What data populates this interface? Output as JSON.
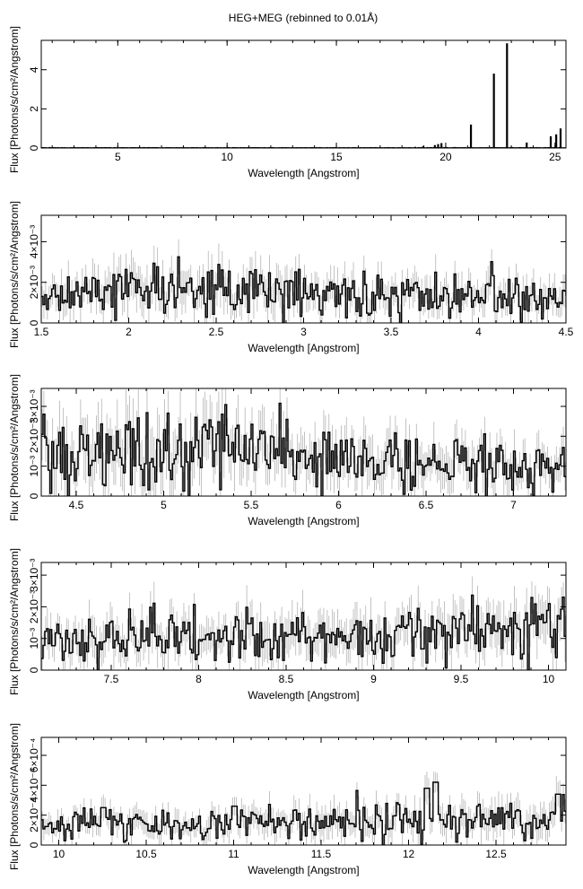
{
  "figure": {
    "title": "HEG+MEG (rebinned to 0.01Å)"
  },
  "chart_data": [
    {
      "type": "line",
      "title": "HEG+MEG (rebinned to 0.01Å)",
      "xlabel": "Wavelength [Angstrom]",
      "ylabel": "Flux [Photons/s/cm²/Angstrom]",
      "xlim": [
        1.5,
        25.5
      ],
      "ylim": [
        0,
        5.5
      ],
      "x_ticks": [
        5,
        10,
        15,
        20,
        25
      ],
      "x_tick_labels": [
        "5",
        "10",
        "15",
        "20",
        "25"
      ],
      "y_ticks": [
        0,
        2,
        4
      ],
      "y_tick_labels": [
        "0",
        "2",
        "4"
      ],
      "lines": [
        {
          "x": 18.6,
          "y": 0.06
        },
        {
          "x": 18.97,
          "y": 0.09
        },
        {
          "x": 19.5,
          "y": 0.15
        },
        {
          "x": 19.65,
          "y": 0.2
        },
        {
          "x": 19.8,
          "y": 0.25
        },
        {
          "x": 21.15,
          "y": 1.2
        },
        {
          "x": 22.2,
          "y": 3.8
        },
        {
          "x": 22.8,
          "y": 5.35
        },
        {
          "x": 23.7,
          "y": 0.28
        },
        {
          "x": 24.8,
          "y": 0.6
        },
        {
          "x": 25.05,
          "y": 0.7
        },
        {
          "x": 25.25,
          "y": 1.0
        }
      ],
      "continuum": 0.02
    },
    {
      "type": "line",
      "xlabel": "Wavelength [Angstrom]",
      "ylabel": "Flux [Photons/s/cm²/Angstrom]",
      "xlim": [
        1.5,
        4.5
      ],
      "ylim": [
        0,
        0.0053
      ],
      "x_ticks": [
        1.5,
        2,
        2.5,
        3,
        3.5,
        4,
        4.5
      ],
      "x_tick_labels": [
        "1.5",
        "2",
        "2.5",
        "3",
        "3.5",
        "4",
        "4.5"
      ],
      "y_ticks": [
        0,
        0.002,
        0.004
      ],
      "y_tick_labels": [
        "0",
        "2×10⁻³",
        "4×10⁻³"
      ],
      "profile": [
        [
          1.5,
          0.0011
        ],
        [
          2.0,
          0.0017
        ],
        [
          2.5,
          0.0015
        ],
        [
          3.0,
          0.0014
        ],
        [
          3.5,
          0.0013
        ],
        [
          4.0,
          0.0013
        ],
        [
          4.5,
          0.0012
        ]
      ]
    },
    {
      "type": "line",
      "xlabel": "Wavelength [Angstrom]",
      "ylabel": "Flux [Photons/s/cm²/Angstrom]",
      "xlim": [
        4.3,
        7.3
      ],
      "ylim": [
        0,
        0.0036
      ],
      "x_ticks": [
        4.5,
        5,
        5.5,
        6,
        6.5,
        7
      ],
      "x_tick_labels": [
        "4.5",
        "5",
        "5.5",
        "6",
        "6.5",
        "7"
      ],
      "y_ticks": [
        0,
        0.001,
        0.002,
        0.003
      ],
      "y_tick_labels": [
        "0",
        "10⁻³",
        "2×10⁻³",
        "3×10⁻³"
      ],
      "profile": [
        [
          4.3,
          0.0015
        ],
        [
          4.8,
          0.0017
        ],
        [
          5.3,
          0.0016
        ],
        [
          5.8,
          0.0013
        ],
        [
          6.3,
          0.0012
        ],
        [
          6.8,
          0.0011
        ],
        [
          7.3,
          0.001
        ]
      ]
    },
    {
      "type": "line",
      "xlabel": "Wavelength [Angstrom]",
      "ylabel": "Flux [Photons/s/cm²/Angstrom]",
      "xlim": [
        7.1,
        10.1
      ],
      "ylim": [
        0,
        0.0034
      ],
      "x_ticks": [
        7.5,
        8,
        8.5,
        9,
        9.5,
        10
      ],
      "x_tick_labels": [
        "7.5",
        "8",
        "8.5",
        "9",
        "9.5",
        "10"
      ],
      "y_ticks": [
        0,
        0.001,
        0.002,
        0.003
      ],
      "y_tick_labels": [
        "0",
        "10⁻³",
        "2×10⁻³",
        "3×10⁻³"
      ],
      "profile": [
        [
          7.1,
          0.001
        ],
        [
          7.6,
          0.001
        ],
        [
          8.1,
          0.001
        ],
        [
          8.6,
          0.0011
        ],
        [
          9.1,
          0.0011
        ],
        [
          9.6,
          0.0012
        ],
        [
          10.1,
          0.0013
        ]
      ]
    },
    {
      "type": "line",
      "xlabel": "Wavelength [Angstrom]",
      "ylabel": "Flux [Photons/s/cm²/Angstrom]",
      "xlim": [
        9.9,
        12.9
      ],
      "ylim": [
        0,
        0.00072
      ],
      "x_ticks": [
        10,
        10.5,
        11,
        11.5,
        12,
        12.5
      ],
      "x_tick_labels": [
        "10",
        "10.5",
        "11",
        "11.5",
        "12",
        "12.5"
      ],
      "y_ticks": [
        0,
        0.0002,
        0.0004,
        0.0006
      ],
      "y_tick_labels": [
        "0",
        "2×10⁻⁴",
        "4×10⁻⁴",
        "6×10⁻⁴"
      ],
      "profile": [
        [
          9.9,
          0.00012
        ],
        [
          10.5,
          0.00013
        ],
        [
          11.0,
          0.00014
        ],
        [
          11.5,
          0.00015
        ],
        [
          12.0,
          0.00016
        ],
        [
          12.5,
          0.00017
        ],
        [
          12.9,
          0.00019
        ]
      ],
      "features": [
        [
          10.25,
          0.00025
        ],
        [
          11.0,
          0.00026
        ],
        [
          12.1,
          0.00038
        ],
        [
          12.15,
          0.00042
        ],
        [
          12.85,
          0.00034
        ]
      ]
    }
  ]
}
